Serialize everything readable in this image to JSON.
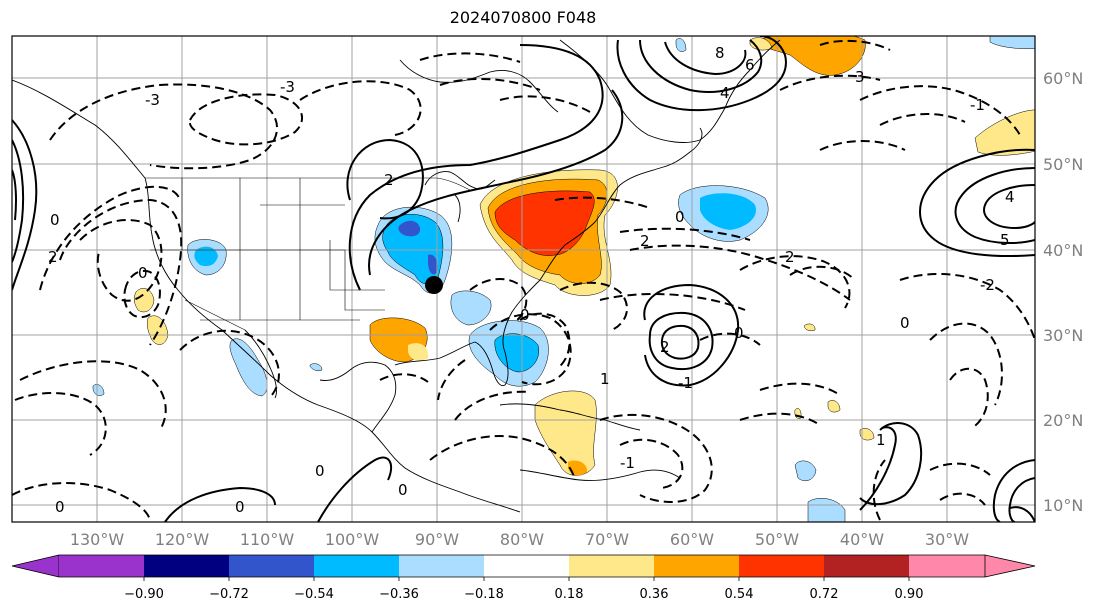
{
  "title": "2024070800 F048",
  "longitude_labels": [
    "130°W",
    "120°W",
    "110°W",
    "100°W",
    "90°W",
    "80°W",
    "70°W",
    "60°W",
    "50°W",
    "40°W",
    "30°W"
  ],
  "latitude_labels": [
    "10°N",
    "20°N",
    "30°N",
    "40°N",
    "50°N",
    "60°N"
  ],
  "colorbar": {
    "colors": [
      "#9933cc",
      "#000080",
      "#3355cc",
      "#00bbff",
      "#aaddff",
      "#ffffff",
      "#ffe88a",
      "#ffa500",
      "#ff3300",
      "#b22222",
      "#ff88aa"
    ],
    "tick_labels": [
      "−0.90",
      "−0.72",
      "−0.54",
      "−0.36",
      "−0.18",
      "0.18",
      "0.36",
      "0.54",
      "0.72",
      "0.90"
    ]
  },
  "contour_labels": [
    "0",
    "-1",
    "-2",
    "-3",
    "1",
    "2",
    "3",
    "4",
    "5",
    "6",
    "8"
  ],
  "marker": {
    "lon": -90,
    "lat": 35.5,
    "color": "#000000"
  },
  "colors": {
    "grid": "#a0a0a0",
    "coast": "#000000",
    "tick": "#808080"
  }
}
